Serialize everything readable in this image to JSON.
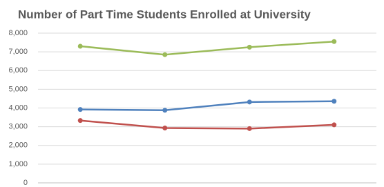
{
  "chart_data": {
    "type": "line",
    "title": "Number of Part Time Students Enrolled at University",
    "categories": [
      null,
      null,
      null,
      null
    ],
    "series": [
      {
        "color": "#9bbb59",
        "values": [
          7300,
          6850,
          7250,
          7550
        ]
      },
      {
        "color": "#4f81bd",
        "values": [
          3920,
          3880,
          4320,
          4360
        ]
      },
      {
        "color": "#c0504d",
        "values": [
          3330,
          2930,
          2900,
          3100
        ]
      }
    ],
    "ylim": [
      0,
      8000
    ],
    "yticks": [
      0,
      {
        "value": 1000,
        "label": "1,000"
      },
      {
        "value": 2000,
        "label": "2,000"
      },
      {
        "value": 3000,
        "label": "3,000"
      },
      {
        "value": 4000,
        "label": "4,000"
      },
      {
        "value": 5000,
        "label": "5,000"
      },
      {
        "value": 6000,
        "label": "6,000"
      },
      {
        "value": 7000,
        "label": "7,000"
      },
      {
        "value": 8000,
        "label": "8,000"
      }
    ],
    "grid": true
  }
}
